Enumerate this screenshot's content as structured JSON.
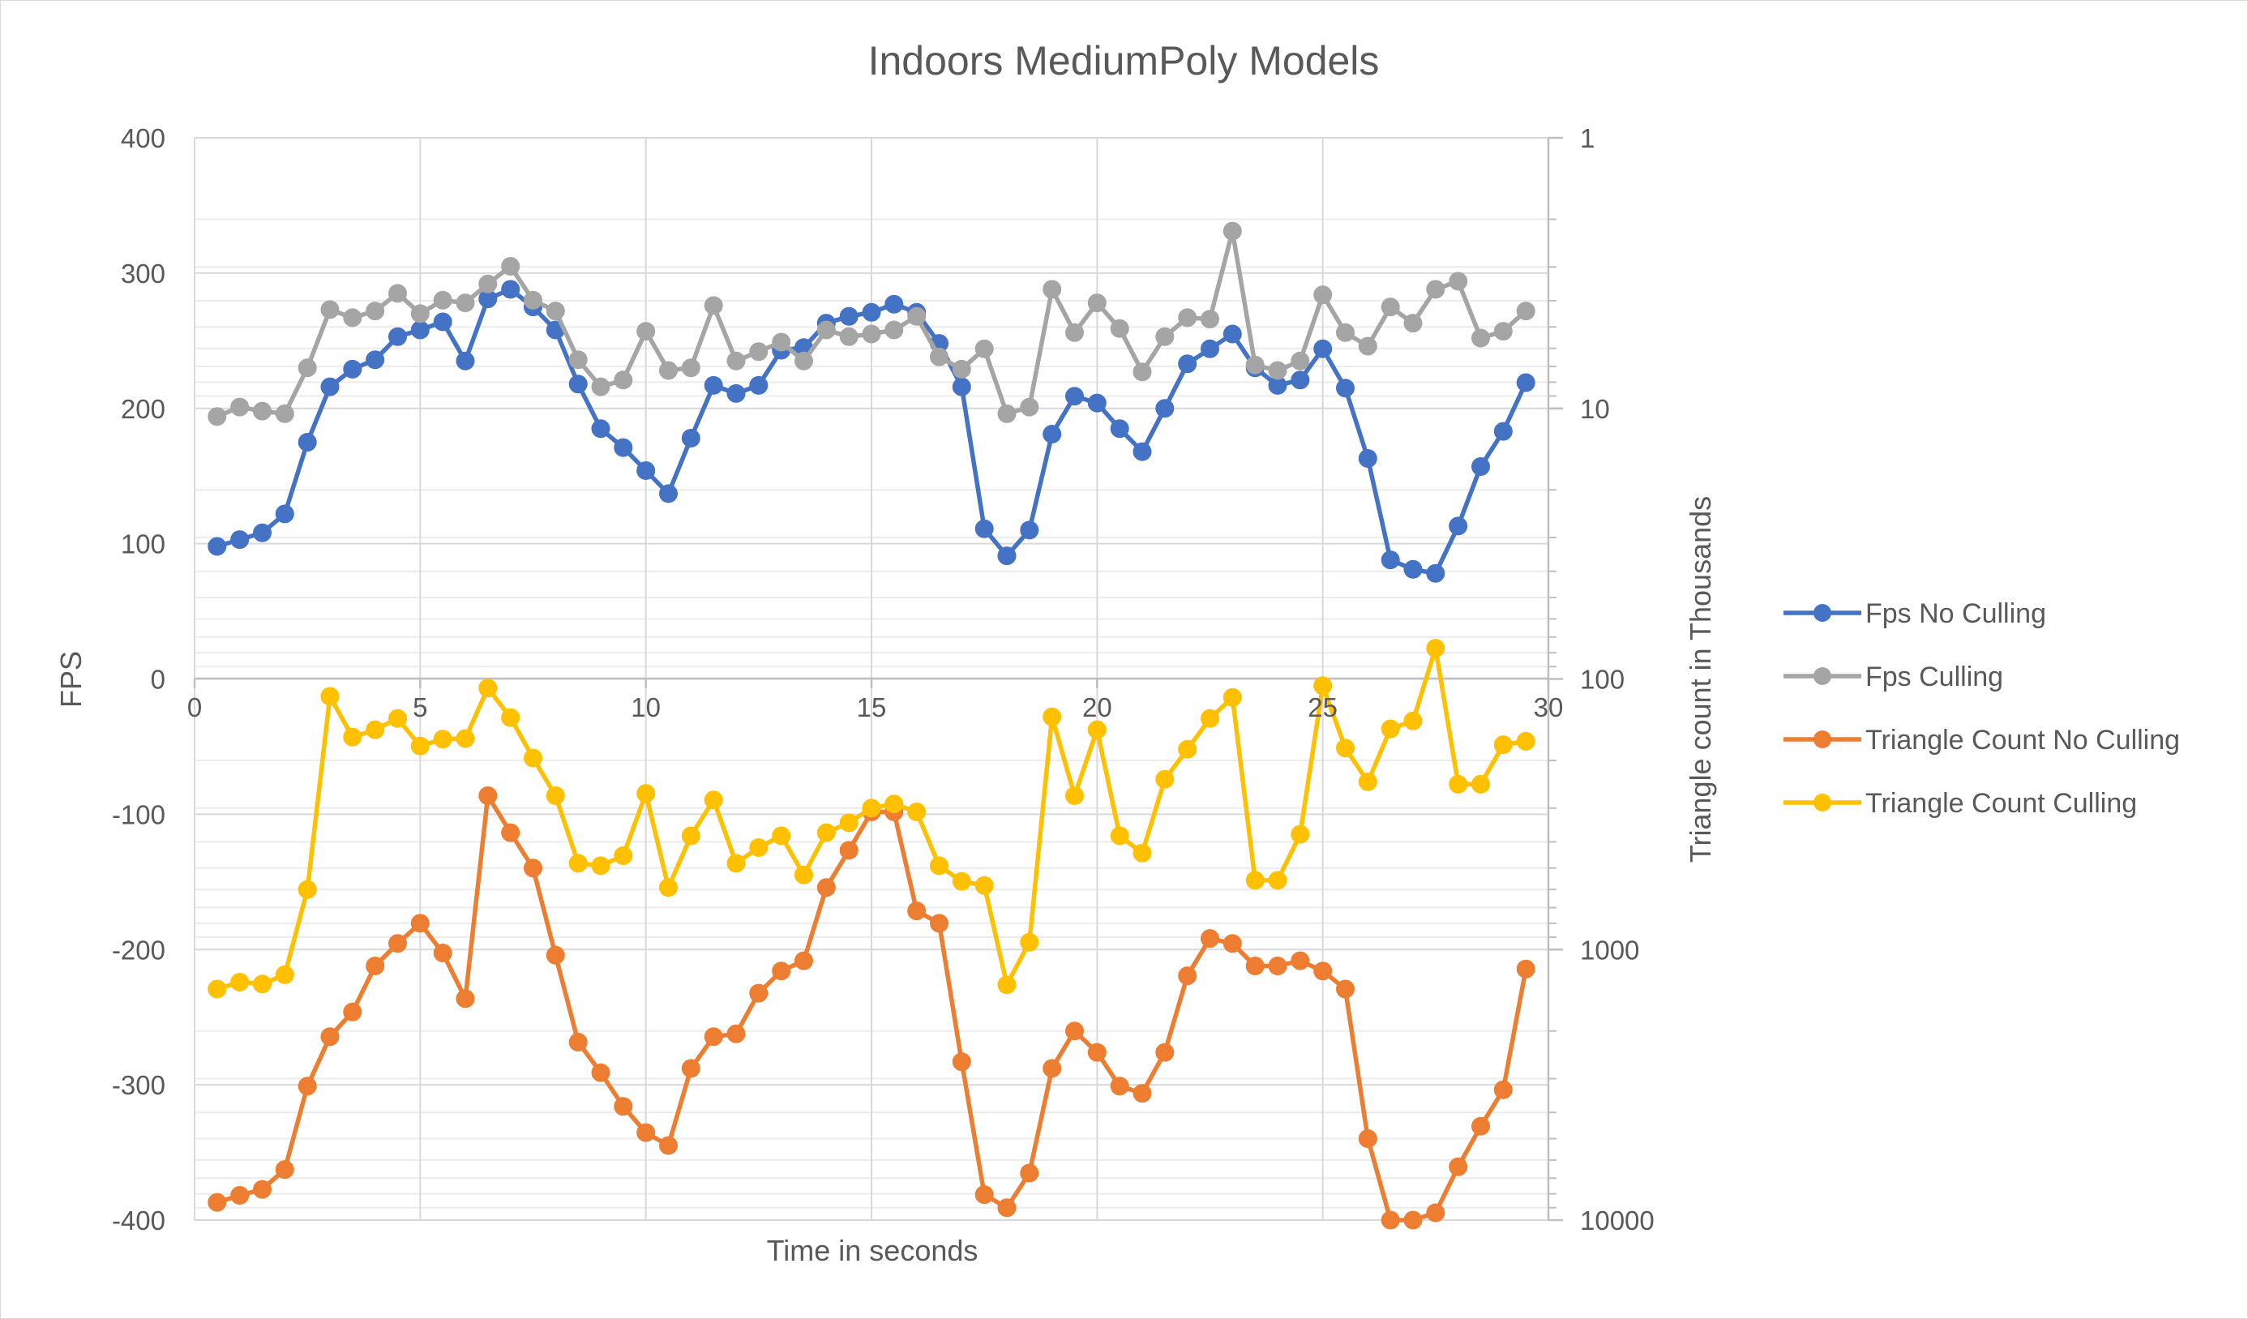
{
  "chart_data": {
    "type": "line",
    "title": "Indoors MediumPoly Models",
    "xlabel": "Time in seconds",
    "ylabel": "FPS",
    "y2label": "Triangle count in Thousands",
    "xlim": [
      0,
      30
    ],
    "ylim": [
      -400,
      400
    ],
    "y2scale": "log",
    "y2lim_reversed": [
      1,
      10000
    ],
    "x_ticks": [
      "0",
      "5",
      "10",
      "15",
      "20",
      "25",
      "30"
    ],
    "y_ticks": [
      "400",
      "300",
      "200",
      "100",
      "0",
      "-100",
      "-200",
      "-300",
      "-400"
    ],
    "y2_ticks": [
      "1",
      "10",
      "100",
      "1000",
      "10000"
    ],
    "legend_position": "right",
    "grid": true,
    "x": [
      0.5,
      1.0,
      1.5,
      2.0,
      2.5,
      3.0,
      3.5,
      4.0,
      4.5,
      5.0,
      5.5,
      6.0,
      6.5,
      7.0,
      7.5,
      8.0,
      8.5,
      9.0,
      9.5,
      10.0,
      10.5,
      11.0,
      11.5,
      12.0,
      12.5,
      13.0,
      13.5,
      14.0,
      14.5,
      15.0,
      15.5,
      16.0,
      16.5,
      17.0,
      17.5,
      18.0,
      18.5,
      19.0,
      19.5,
      20.0,
      20.5,
      21.0,
      21.5,
      22.0,
      22.5,
      23.0,
      23.5,
      24.0,
      24.5,
      25.0,
      25.5,
      26.0,
      26.5,
      27.0,
      27.5,
      28.0,
      28.5,
      29.0,
      29.5
    ],
    "series": [
      {
        "name": "Fps No Culling",
        "axis": "left",
        "color": "#4472c4",
        "values": [
          98,
          103,
          108,
          122,
          175,
          216,
          229,
          236,
          253,
          258,
          264,
          235,
          281,
          288,
          275,
          258,
          218,
          185,
          171,
          154,
          137,
          178,
          217,
          211,
          217,
          243,
          245,
          263,
          268,
          271,
          277,
          271,
          248,
          216,
          111,
          91,
          110,
          181,
          209,
          204,
          185,
          168,
          200,
          233,
          244,
          255,
          230,
          217,
          221,
          244,
          215,
          163,
          88,
          81,
          78,
          113,
          157,
          183,
          219
        ]
      },
      {
        "name": "Fps Culling",
        "axis": "left",
        "color": "#a5a5a5",
        "values": [
          194,
          201,
          198,
          196,
          230,
          273,
          267,
          272,
          285,
          270,
          280,
          278,
          292,
          305,
          280,
          272,
          236,
          216,
          221,
          257,
          228,
          230,
          276,
          235,
          242,
          249,
          235,
          258,
          253,
          255,
          258,
          268,
          238,
          229,
          244,
          196,
          201,
          288,
          256,
          278,
          259,
          227,
          253,
          267,
          266,
          331,
          232,
          228,
          235,
          284,
          256,
          246,
          275,
          263,
          288,
          294,
          252,
          257,
          272
        ]
      },
      {
        "name": "Triangle Count No Culling",
        "axis": "right",
        "color": "#ed7d31",
        "values": [
          8600,
          8100,
          7700,
          6500,
          3200,
          2100,
          1700,
          1150,
          950,
          800,
          1030,
          1520,
          270,
          370,
          500,
          1050,
          2200,
          2850,
          3800,
          4750,
          5300,
          2750,
          2100,
          2050,
          1450,
          1200,
          1100,
          590,
          430,
          310,
          310,
          720,
          800,
          2600,
          8050,
          9000,
          6700,
          2750,
          2000,
          2400,
          3200,
          3400,
          2400,
          1250,
          910,
          950,
          1150,
          1150,
          1100,
          1200,
          1400,
          5000,
          10000,
          10000,
          9400,
          6350,
          4500,
          3300,
          1180
        ]
      },
      {
        "name": "Triangle Count Culling",
        "axis": "right",
        "color": "#ffc000",
        "values": [
          1400,
          1320,
          1340,
          1240,
          600,
          116,
          164,
          154,
          140,
          177,
          167,
          166,
          108,
          139,
          196,
          270,
          480,
          490,
          450,
          265,
          590,
          380,
          280,
          480,
          420,
          380,
          530,
          370,
          340,
          300,
          290,
          310,
          490,
          560,
          580,
          1350,
          940,
          138,
          270,
          154,
          380,
          440,
          235,
          182,
          140,
          117,
          555,
          555,
          375,
          106,
          180,
          240,
          153,
          143,
          77,
          245,
          245,
          175,
          170
        ]
      }
    ]
  }
}
